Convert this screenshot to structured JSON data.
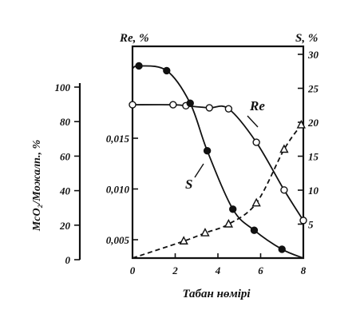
{
  "chart_data": {
    "type": "line",
    "xlabel": "Табан нөмірі",
    "x_ticks": [
      "0",
      "2",
      "4",
      "6",
      "8"
    ],
    "xlim": [
      0,
      8
    ],
    "axes": {
      "left_outer": {
        "label": "McO₂/Moжалп., %",
        "ticks": [
          "0",
          "20",
          "40",
          "60",
          "80",
          "100"
        ],
        "range": [
          0,
          100
        ]
      },
      "left_inner": {
        "label": "Re, %",
        "ticks": [
          "0,005",
          "0,010",
          "0,015"
        ],
        "range": [
          0,
          0.022
        ]
      },
      "right": {
        "label": "S, %",
        "ticks": [
          "5",
          "10",
          "15",
          "20",
          "25",
          "30"
        ],
        "range": [
          0,
          30
        ]
      }
    },
    "series": [
      {
        "name": "Re",
        "axis": "left_inner",
        "marker": "open-circle",
        "line": "solid",
        "x": [
          0,
          1.9,
          2.5,
          3.6,
          4.5,
          5.8,
          7.1,
          8.0
        ],
        "y": [
          0.0183,
          0.0183,
          0.0182,
          0.018,
          0.0179,
          0.0146,
          0.0099,
          0.0069
        ]
      },
      {
        "name": "S",
        "axis": "right",
        "marker": "filled-circle",
        "line": "solid",
        "x": [
          0.3,
          1.6,
          2.7,
          3.5,
          4.7,
          5.7,
          7.0
        ],
        "y": [
          28.3,
          27.6,
          22.8,
          15.8,
          7.2,
          4.1,
          1.3
        ]
      },
      {
        "name": "",
        "axis": "right",
        "marker": "open-triangle",
        "line": "dashed",
        "x": [
          2.4,
          3.4,
          4.5,
          5.8,
          7.1,
          7.9
        ],
        "y": [
          2.5,
          3.7,
          5.0,
          8.1,
          16.0,
          19.6
        ]
      }
    ]
  }
}
